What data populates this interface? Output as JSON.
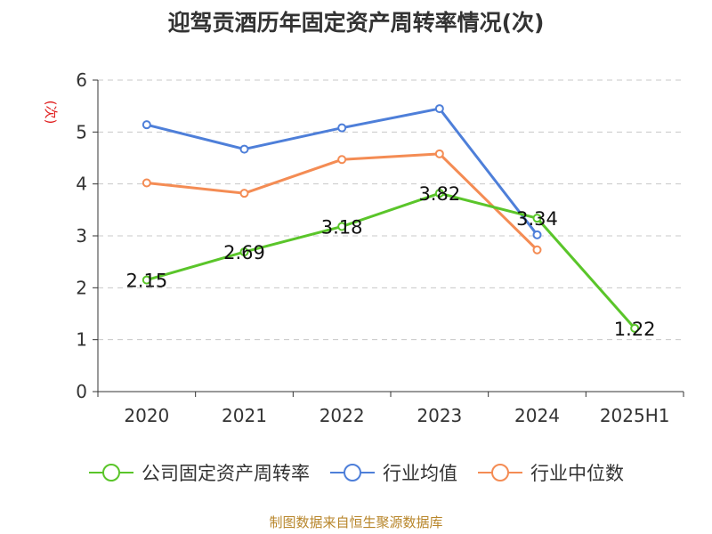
{
  "chart_data": {
    "type": "line",
    "title": "迎驾贡酒历年固定资产周转率情况(次)",
    "ylabel": "(次)",
    "xlabel": "",
    "categories": [
      "2020",
      "2021",
      "2022",
      "2023",
      "2024",
      "2025H1"
    ],
    "ylim": [
      0,
      6
    ],
    "yticks": [
      0,
      1,
      2,
      3,
      4,
      5,
      6
    ],
    "grid": true,
    "legend": "bottom",
    "series": [
      {
        "name": "公司固定资产周转率",
        "color": "#5ac52a",
        "values": [
          2.15,
          2.69,
          3.18,
          3.82,
          3.34,
          1.22
        ],
        "labels": [
          "2.15",
          "2.69",
          "3.18",
          "3.82",
          "3.34",
          "1.22"
        ]
      },
      {
        "name": "行业均值",
        "color": "#4e7fd9",
        "values": [
          5.14,
          4.67,
          5.08,
          5.45,
          3.02,
          null
        ]
      },
      {
        "name": "行业中位数",
        "color": "#f48c54",
        "values": [
          4.02,
          3.82,
          4.47,
          4.58,
          2.73,
          null
        ]
      }
    ]
  },
  "source": "制图数据来自恒生聚源数据库"
}
